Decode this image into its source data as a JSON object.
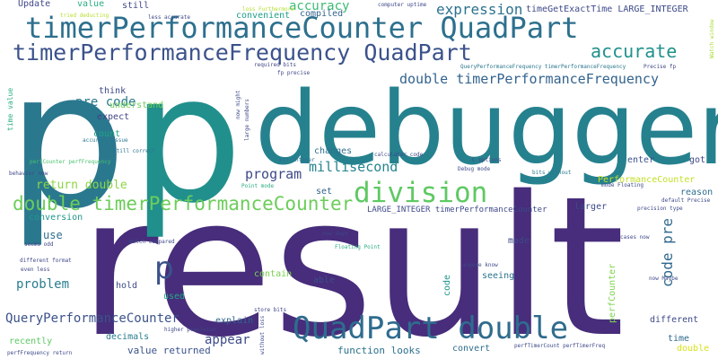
{
  "background": "#ffffff",
  "words": [
    {
      "text": "result",
      "color": "#472d7b"
    },
    {
      "text": "debugger",
      "color": "#26818e"
    },
    {
      "text": "p",
      "color": "#2a788e"
    },
    {
      "text": "p",
      "color": "#21908d"
    },
    {
      "text": "timerPerformanceCounter QuadPart",
      "color": "#2d708e"
    },
    {
      "text": "timerPerformanceFrequency QuadPart",
      "color": "#3b528b"
    },
    {
      "text": "QuadPart double",
      "color": "#2f6c8e"
    },
    {
      "text": "division",
      "color": "#5ec962"
    },
    {
      "text": "double timerPerformanceCounter",
      "color": "#6ccd5a"
    },
    {
      "text": "double timerPerformanceFrequency",
      "color": "#33638d"
    },
    {
      "text": "accurate",
      "color": "#21918c"
    },
    {
      "text": "p",
      "color": "#3b528b"
    },
    {
      "text": "expression",
      "color": "#2c728e"
    },
    {
      "text": "accuracy",
      "color": "#3bbb75"
    },
    {
      "text": "pre code",
      "color": "#29798e"
    },
    {
      "text": "program",
      "color": "#3e4989"
    },
    {
      "text": "millisecond",
      "color": "#25838e"
    },
    {
      "text": "return double",
      "color": "#8bd646"
    },
    {
      "text": "code pre",
      "color": "#31688e"
    },
    {
      "text": "QueryPerformanceCounter",
      "color": "#3b528b"
    },
    {
      "text": "appear",
      "color": "#3e4c8a"
    },
    {
      "text": "problem",
      "color": "#287d8e"
    },
    {
      "text": "function looks",
      "color": "#2c718e"
    },
    {
      "text": "value returned",
      "color": "#3a538b"
    },
    {
      "text": "timeGetExactTime LARGE_INTEGER",
      "color": "#3e4a89"
    },
    {
      "text": "Update",
      "color": "#3f4788"
    },
    {
      "text": "value",
      "color": "#2ab07f"
    },
    {
      "text": "still",
      "color": "#3f4889"
    },
    {
      "text": "convenient",
      "color": "#1f9e89"
    },
    {
      "text": "compiled",
      "color": "#33638d"
    },
    {
      "text": "think",
      "color": "#3e4989"
    },
    {
      "text": "understand",
      "color": "#6ece58"
    },
    {
      "text": "expect",
      "color": "#414487"
    },
    {
      "text": "count",
      "color": "#20a386"
    },
    {
      "text": "changes",
      "color": "#2d708e"
    },
    {
      "text": "enter",
      "color": "#3b528b"
    },
    {
      "text": "got",
      "color": "#3f4788"
    },
    {
      "text": "PerformanceCounter",
      "color": "#c2df23"
    },
    {
      "text": "reason",
      "color": "#2e6e8e"
    },
    {
      "text": "set",
      "color": "#33638d"
    },
    {
      "text": "conversion",
      "color": "#1f988b"
    },
    {
      "text": "use",
      "color": "#2e6d8e"
    },
    {
      "text": "larger",
      "color": "#3e4a89"
    },
    {
      "text": "made",
      "color": "#3f4788"
    },
    {
      "text": "contain",
      "color": "#7ad151"
    },
    {
      "text": "able",
      "color": "#3d4e8a"
    },
    {
      "text": "hold",
      "color": "#3e4a89"
    },
    {
      "text": "code",
      "color": "#1f958b"
    },
    {
      "text": "seeing",
      "color": "#2b748e"
    },
    {
      "text": "perfCounter",
      "color": "#7fd34e"
    },
    {
      "text": "used",
      "color": "#22a884"
    },
    {
      "text": "explain",
      "color": "#32648e"
    },
    {
      "text": "decimals",
      "color": "#287c8e"
    },
    {
      "text": "recently",
      "color": "#5ec962"
    },
    {
      "text": "different",
      "color": "#3e4989"
    },
    {
      "text": "time",
      "color": "#306a8e"
    },
    {
      "text": "double",
      "color": "#d8e219"
    },
    {
      "text": "convert",
      "color": "#2e6e8e"
    },
    {
      "text": "time value",
      "color": "#29af7f"
    },
    {
      "text": "LARGE_INTEGER timerPerformanceCounter",
      "color": "#3e4989"
    },
    {
      "text": "QueryPerformanceFrequency timerPerformanceFrequency",
      "color": "#2a778e"
    },
    {
      "text": "computer uptime",
      "color": "#3e4989"
    },
    {
      "text": "loss Furthermore",
      "color": "#b5de2b"
    },
    {
      "text": "less accurate",
      "color": "#3e4989"
    },
    {
      "text": "tried deducting",
      "color": "#b5de2b"
    },
    {
      "text": "required bits",
      "color": "#3f4788"
    },
    {
      "text": "fp precise",
      "color": "#3f4788"
    },
    {
      "text": "Precise fp",
      "color": "#3f4788"
    },
    {
      "text": "perfCounter perfFrequency",
      "color": "#4ac16d"
    },
    {
      "text": "accuracy issue",
      "color": "#2a788e"
    },
    {
      "text": "still correct",
      "color": "#2c728e"
    },
    {
      "text": "behavior now",
      "color": "#3f4788"
    },
    {
      "text": "bit integer",
      "color": "#2d708e"
    },
    {
      "text": "calculator code",
      "color": "#3e4989"
    },
    {
      "text": "C options",
      "color": "#3e4989"
    },
    {
      "text": "Debug mode",
      "color": "#3e4989"
    },
    {
      "text": "bits without",
      "color": "#2a788e"
    },
    {
      "text": "Point mode",
      "color": "#27ad81"
    },
    {
      "text": "mode Floating",
      "color": "#3e4989"
    },
    {
      "text": "default Precise",
      "color": "#3e4989"
    },
    {
      "text": "precision type",
      "color": "#3e4989"
    },
    {
      "text": "now days",
      "color": "#3f4788"
    },
    {
      "text": "Watch compared",
      "color": "#3e4989"
    },
    {
      "text": "Floating Point",
      "color": "#29af7f"
    },
    {
      "text": "anyone know",
      "color": "#3e4989"
    },
    {
      "text": "different format",
      "color": "#3f4788"
    },
    {
      "text": "even less",
      "color": "#3f4788"
    },
    {
      "text": "seems odd",
      "color": "#3f4788"
    },
    {
      "text": "store bits",
      "color": "#3e4989"
    },
    {
      "text": "now Maybe",
      "color": "#3e4989"
    },
    {
      "text": "higher precision",
      "color": "#3f4788"
    },
    {
      "text": "perfFrequency return",
      "color": "#3e4989"
    },
    {
      "text": "perfTimerCount perfTimerFreq",
      "color": "#3e4989"
    },
    {
      "text": "cases now",
      "color": "#3e4989"
    },
    {
      "text": "without loss",
      "color": "#3e4989"
    },
    {
      "text": "now might",
      "color": "#3e4989"
    },
    {
      "text": "large numbers",
      "color": "#3e4989"
    },
    {
      "text": "Watch window",
      "color": "#a8db34"
    }
  ]
}
